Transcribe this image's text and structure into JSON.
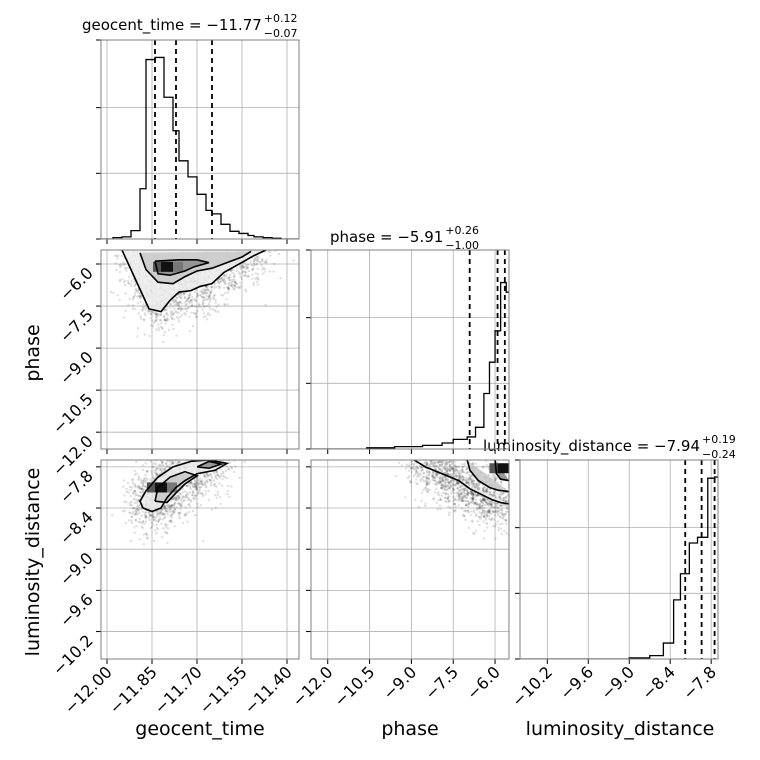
{
  "chart_data": {
    "type": "corner",
    "parameters": [
      "geocent_time",
      "phase",
      "luminosity_distance"
    ],
    "diagonal": [
      {
        "name": "geocent_time",
        "xlabel": "geocent_time",
        "title_main": "geocent_time = −11.77",
        "title_sup": "+0.12",
        "title_sub": "−0.07",
        "median": -11.77,
        "q16": -11.84,
        "q84": -11.65,
        "xlim": [
          -12.02,
          -11.36
        ],
        "ticks": [
          -12.0,
          -11.85,
          -11.7,
          -11.55,
          -11.4
        ],
        "tick_labels": [
          "−12.00",
          "−11.85",
          "−11.70",
          "−11.55",
          "−11.40"
        ],
        "hist_edges": [
          -12.02,
          -11.98,
          -11.95,
          -11.92,
          -11.89,
          -11.87,
          -11.84,
          -11.81,
          -11.78,
          -11.76,
          -11.73,
          -11.7,
          -11.67,
          -11.65,
          -11.62,
          -11.59,
          -11.56,
          -11.53,
          -11.51,
          -11.48,
          -11.45,
          -11.42,
          -11.36
        ],
        "hist_counts": [
          0,
          2,
          3,
          12,
          72,
          257,
          260,
          203,
          155,
          112,
          89,
          64,
          41,
          36,
          21,
          11,
          8,
          5,
          3,
          2,
          1,
          0
        ],
        "hist_ymax": 285
      },
      {
        "name": "phase",
        "xlabel": "phase",
        "title_main": "phase = −5.91",
        "title_sup": "+0.26",
        "title_sub": "−1.00",
        "median": -5.91,
        "q16": -6.91,
        "q84": -5.65,
        "xlim": [
          -12.6,
          -5.5
        ],
        "ticks": [
          -12.0,
          -10.5,
          -9.0,
          -7.5,
          -6.0
        ],
        "tick_labels": [
          "−12.0",
          "−10.5",
          "−9.0",
          "−7.5",
          "−6.0"
        ],
        "hist_edges": [
          -12.6,
          -10.6,
          -9.6,
          -8.6,
          -7.9,
          -7.5,
          -7.0,
          -6.7,
          -6.4,
          -6.2,
          -6.0,
          -5.8,
          -5.6,
          -5.5
        ],
        "hist_counts": [
          0,
          1,
          2,
          3,
          5,
          8,
          10,
          18,
          46,
          72,
          98,
          138,
          130
        ],
        "hist_ymax": 165
      },
      {
        "name": "luminosity_distance",
        "xlabel": "luminosity_distance",
        "title_main": "luminosity_distance = −7.94",
        "title_sup": "+0.19",
        "title_sub": "−0.24",
        "median": -7.94,
        "q16": -8.18,
        "q84": -7.75,
        "xlim": [
          -10.6,
          -7.7
        ],
        "ticks": [
          -10.2,
          -9.6,
          -9.0,
          -8.4,
          -7.8
        ],
        "tick_labels": [
          "−10.2",
          "−9.6",
          "−9.0",
          "−8.4",
          "−7.8"
        ],
        "hist_edges": [
          -10.6,
          -9.0,
          -8.7,
          -8.5,
          -8.35,
          -8.25,
          -8.12,
          -8.0,
          -7.85,
          -7.75,
          -7.7
        ],
        "hist_counts": [
          0,
          1,
          3,
          14,
          52,
          75,
          102,
          107,
          159,
          160
        ],
        "hist_ymax": 175
      }
    ],
    "scatter_panels": [
      {
        "x": "geocent_time",
        "y": "phase",
        "ylabel": "phase",
        "ylim": [
          -12.6,
          -5.5
        ],
        "yticks": [
          -12.0,
          -10.5,
          -9.0,
          -7.5,
          -6.0
        ],
        "ytick_labels": [
          "−12.0",
          "−10.5",
          "−9.0",
          "−7.5",
          "−6.0"
        ],
        "peak": [
          -11.8,
          -6.1
        ],
        "contours": [
          [
            [
              -11.95,
              -5.5
            ],
            [
              -11.92,
              -6.2
            ],
            [
              -11.89,
              -6.9
            ],
            [
              -11.86,
              -7.6
            ],
            [
              -11.82,
              -7.7
            ],
            [
              -11.79,
              -7.3
            ],
            [
              -11.76,
              -7.0
            ],
            [
              -11.72,
              -6.95
            ],
            [
              -11.69,
              -6.8
            ],
            [
              -11.65,
              -6.7
            ],
            [
              -11.61,
              -6.3
            ],
            [
              -11.56,
              -6.0
            ],
            [
              -11.51,
              -5.7
            ],
            [
              -11.47,
              -5.5
            ]
          ],
          [
            [
              -11.89,
              -5.6
            ],
            [
              -11.87,
              -6.2
            ],
            [
              -11.83,
              -6.65
            ],
            [
              -11.78,
              -6.7
            ],
            [
              -11.74,
              -6.45
            ],
            [
              -11.7,
              -6.25
            ],
            [
              -11.65,
              -6.15
            ],
            [
              -11.6,
              -5.95
            ],
            [
              -11.55,
              -5.75
            ],
            [
              -11.52,
              -5.55
            ]
          ],
          [
            [
              -11.84,
              -5.9
            ],
            [
              -11.83,
              -6.35
            ],
            [
              -11.79,
              -6.4
            ],
            [
              -11.74,
              -6.25
            ],
            [
              -11.71,
              -6.1
            ],
            [
              -11.66,
              -5.95
            ],
            [
              -11.7,
              -5.85
            ],
            [
              -11.76,
              -5.85
            ],
            [
              -11.84,
              -5.9
            ]
          ]
        ]
      },
      {
        "x": "geocent_time",
        "y": "luminosity_distance",
        "ylabel": "luminosity_distance",
        "ylim": [
          -10.6,
          -7.7
        ],
        "yticks": [
          -10.2,
          -9.6,
          -9.0,
          -8.4,
          -7.8
        ],
        "ytick_labels": [
          "−10.2",
          "−9.6",
          "−9.0",
          "−8.4",
          "−7.8"
        ],
        "peak": [
          -11.82,
          -8.1
        ],
        "contours": [
          [
            [
              -11.88,
              -8.4
            ],
            [
              -11.85,
              -8.45
            ],
            [
              -11.82,
              -8.4
            ],
            [
              -11.8,
              -8.25
            ],
            [
              -11.77,
              -8.1
            ],
            [
              -11.74,
              -8.0
            ],
            [
              -11.7,
              -7.9
            ],
            [
              -11.64,
              -7.85
            ],
            [
              -11.6,
              -7.75
            ],
            [
              -11.66,
              -7.7
            ],
            [
              -11.72,
              -7.72
            ],
            [
              -11.78,
              -7.8
            ],
            [
              -11.83,
              -7.95
            ],
            [
              -11.87,
              -8.15
            ],
            [
              -11.89,
              -8.3
            ],
            [
              -11.88,
              -8.4
            ]
          ],
          [
            [
              -11.84,
              -8.3
            ],
            [
              -11.8,
              -8.32
            ],
            [
              -11.77,
              -8.18
            ],
            [
              -11.74,
              -8.05
            ],
            [
              -11.7,
              -7.93
            ],
            [
              -11.74,
              -7.87
            ],
            [
              -11.79,
              -7.95
            ],
            [
              -11.83,
              -8.1
            ],
            [
              -11.84,
              -8.3
            ]
          ],
          [
            [
              -11.7,
              -7.8
            ],
            [
              -11.66,
              -7.82
            ],
            [
              -11.62,
              -7.76
            ],
            [
              -11.66,
              -7.72
            ],
            [
              -11.7,
              -7.8
            ]
          ]
        ]
      },
      {
        "x": "phase",
        "y": "luminosity_distance",
        "ylim": [
          -10.6,
          -7.7
        ],
        "peak": [
          -5.7,
          -7.82
        ],
        "contours": [
          [
            [
              -8.9,
              -7.7
            ],
            [
              -8.5,
              -7.8
            ],
            [
              -7.9,
              -7.9
            ],
            [
              -7.3,
              -8.0
            ],
            [
              -6.9,
              -8.12
            ],
            [
              -6.5,
              -8.2
            ],
            [
              -6.1,
              -8.28
            ],
            [
              -5.8,
              -8.32
            ],
            [
              -5.5,
              -8.34
            ]
          ],
          [
            [
              -7.0,
              -7.7
            ],
            [
              -6.9,
              -7.85
            ],
            [
              -6.6,
              -8.0
            ],
            [
              -6.2,
              -8.1
            ],
            [
              -5.9,
              -8.14
            ],
            [
              -5.5,
              -8.16
            ]
          ],
          [
            [
              -6.0,
              -7.7
            ],
            [
              -5.95,
              -7.9
            ],
            [
              -5.8,
              -7.98
            ],
            [
              -5.5,
              -8.0
            ]
          ]
        ]
      }
    ],
    "grid": true
  }
}
